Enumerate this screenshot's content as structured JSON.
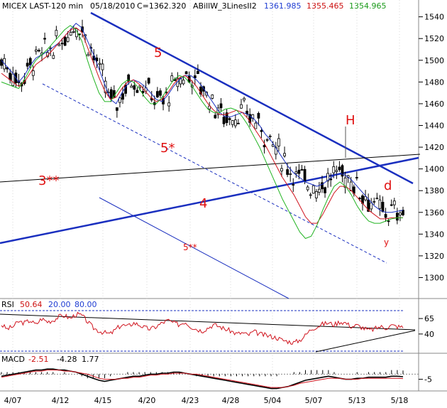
{
  "header": {
    "symbol": "MICEX LAST-120 min",
    "date": "05/18/2010",
    "close": "C=1362.320",
    "indicator": "ABillW_3LinesII2",
    "val1": "1361.985",
    "val2": "1355.465",
    "val3": "1354.965"
  },
  "colors": {
    "blue_line": "#1a2fbf",
    "red_line": "#d0141e",
    "green_line": "#22b422",
    "label_red": "#e01010",
    "val1": "#1e3cd2",
    "val2": "#cc1010",
    "val3": "#1a9a1a"
  },
  "chart_data": [
    {
      "type": "line",
      "panel": "price",
      "x_tick_labels": [
        "4/07",
        "4/12",
        "4/15",
        "4/20",
        "4/23",
        "4/28",
        "5/04",
        "5/07",
        "5/13",
        "5/18"
      ],
      "y_ticks": [
        1300,
        1320,
        1340,
        1360,
        1380,
        1400,
        1420,
        1440,
        1460,
        1480,
        1500,
        1520,
        1540
      ],
      "ylim": [
        1282,
        1545
      ],
      "series": [
        {
          "values": [
            1500,
            1494,
            1488,
            1480,
            1486,
            1495,
            1502,
            1505,
            1508,
            1512,
            1516,
            1522,
            1528,
            1534,
            1530,
            1518,
            1506,
            1492,
            1478,
            1464,
            1460,
            1470,
            1478,
            1482,
            1480,
            1476,
            1470,
            1464,
            1462,
            1468,
            1476,
            1482,
            1486,
            1486,
            1482,
            1476,
            1468,
            1460,
            1452,
            1448,
            1448,
            1450,
            1452,
            1450,
            1446,
            1440,
            1432,
            1426,
            1418,
            1410,
            1402,
            1396,
            1392,
            1388,
            1386,
            1384,
            1386,
            1390,
            1394,
            1396,
            1394,
            1390,
            1384,
            1378,
            1372,
            1366,
            1362,
            1360,
            1360,
            1361,
            1362
          ]
        },
        {
          "values": [
            1488,
            1484,
            1480,
            1476,
            1480,
            1488,
            1496,
            1500,
            1504,
            1510,
            1516,
            1522,
            1528,
            1530,
            1526,
            1512,
            1498,
            1484,
            1472,
            1464,
            1466,
            1474,
            1480,
            1482,
            1478,
            1472,
            1466,
            1462,
            1464,
            1470,
            1478,
            1484,
            1486,
            1482,
            1476,
            1468,
            1460,
            1454,
            1450,
            1450,
            1452,
            1454,
            1452,
            1446,
            1438,
            1430,
            1422,
            1412,
            1402,
            1392,
            1384,
            1376,
            1366,
            1356,
            1350,
            1350,
            1358,
            1368,
            1378,
            1384,
            1384,
            1380,
            1374,
            1368,
            1362,
            1358,
            1354,
            1354,
            1355,
            1355,
            1355
          ]
        },
        {
          "values": [
            1480,
            1478,
            1476,
            1474,
            1482,
            1492,
            1500,
            1505,
            1510,
            1516,
            1522,
            1528,
            1532,
            1528,
            1518,
            1500,
            1484,
            1470,
            1462,
            1462,
            1470,
            1478,
            1482,
            1480,
            1474,
            1466,
            1460,
            1460,
            1466,
            1474,
            1482,
            1486,
            1484,
            1478,
            1470,
            1462,
            1455,
            1452,
            1452,
            1455,
            1456,
            1454,
            1448,
            1440,
            1430,
            1420,
            1408,
            1396,
            1384,
            1372,
            1362,
            1352,
            1342,
            1336,
            1338,
            1348,
            1362,
            1374,
            1384,
            1388,
            1384,
            1376,
            1366,
            1358,
            1352,
            1350,
            1350,
            1352,
            1354,
            1355,
            1355
          ]
        }
      ],
      "annotations": [
        "5",
        "5*",
        "5**",
        "3**",
        "4",
        "H",
        "d",
        "y"
      ]
    },
    {
      "type": "line",
      "panel": "rsi",
      "title": "RSI",
      "values_label": [
        "50.64",
        "20.00",
        "80.00"
      ],
      "y_ticks": [
        40,
        65
      ],
      "ylim": [
        10,
        95
      ],
      "series": [
        {
          "values": [
            55,
            48,
            52,
            60,
            58,
            62,
            55,
            65,
            60,
            62,
            68,
            70,
            65,
            72,
            70,
            60,
            50,
            45,
            42,
            40,
            48,
            55,
            52,
            58,
            55,
            50,
            48,
            52,
            58,
            62,
            58,
            55,
            60,
            52,
            48,
            45,
            50,
            55,
            52,
            48,
            45,
            40,
            42,
            38,
            44,
            40,
            38,
            36,
            34,
            30,
            28,
            26,
            30,
            38,
            48,
            52,
            56,
            58,
            55,
            60,
            58,
            52,
            54,
            50,
            46,
            48,
            52,
            50,
            54,
            52,
            51
          ]
        }
      ]
    },
    {
      "type": "line",
      "panel": "macd",
      "title": "MACD",
      "values_label": [
        "-2.51",
        "-4.28",
        "1.77"
      ],
      "y_ticks": [
        -5
      ],
      "ylim": [
        -15,
        10
      ],
      "series": [
        {
          "values": [
            -2,
            -1,
            0,
            1,
            2,
            3,
            4,
            4,
            5,
            5,
            4,
            4,
            3,
            2,
            0,
            -2,
            -4,
            -6,
            -7,
            -6,
            -5,
            -4,
            -3,
            -2,
            -2,
            -1,
            0,
            0,
            1,
            1,
            2,
            2,
            1,
            0,
            -1,
            -2,
            -3,
            -4,
            -5,
            -6,
            -7,
            -8,
            -9,
            -10,
            -11,
            -12,
            -13,
            -14,
            -14,
            -13,
            -12,
            -10,
            -8,
            -6,
            -5,
            -4,
            -3,
            -2,
            -3,
            -4,
            -5,
            -5,
            -4,
            -4,
            -3,
            -3,
            -3,
            -3,
            -2,
            -2,
            -2.5
          ]
        },
        {
          "values": [
            -3,
            -2,
            -1,
            0,
            1,
            2,
            3,
            3,
            4,
            4,
            4,
            3,
            3,
            2,
            1,
            0,
            -2,
            -4,
            -5,
            -5,
            -5,
            -4,
            -4,
            -3,
            -3,
            -2,
            -1,
            -1,
            0,
            0,
            1,
            1,
            1,
            0,
            0,
            -1,
            -2,
            -3,
            -4,
            -5,
            -6,
            -7,
            -8,
            -9,
            -10,
            -11,
            -12,
            -13,
            -13,
            -13,
            -12,
            -11,
            -9,
            -8,
            -7,
            -6,
            -5,
            -4,
            -4,
            -4,
            -5,
            -5,
            -5,
            -4,
            -4,
            -4,
            -4,
            -4,
            -4,
            -4,
            -4.3
          ]
        }
      ]
    }
  ]
}
